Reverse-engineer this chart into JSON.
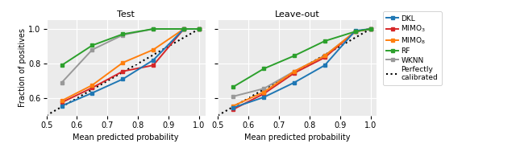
{
  "test": {
    "x_dkl": [
      0.55,
      0.65,
      0.75,
      0.85,
      0.95,
      1.0
    ],
    "y_dkl": [
      0.555,
      0.63,
      0.71,
      0.82,
      1.0,
      1.0
    ],
    "x_mimo3": [
      0.55,
      0.65,
      0.75,
      0.85,
      0.95,
      1.0
    ],
    "y_mimo3": [
      0.575,
      0.66,
      0.755,
      0.79,
      1.0,
      1.0
    ],
    "x_mimo8": [
      0.55,
      0.65,
      0.75,
      0.85,
      0.95,
      1.0
    ],
    "y_mimo8": [
      0.585,
      0.675,
      0.805,
      0.88,
      1.0,
      1.0
    ],
    "x_rf": [
      0.55,
      0.65,
      0.75,
      0.85,
      0.95,
      1.0
    ],
    "y_rf": [
      0.79,
      0.905,
      0.97,
      1.0,
      1.0,
      1.0
    ],
    "x_wknn": [
      0.55,
      0.65,
      0.75,
      0.85,
      0.95,
      1.0
    ],
    "y_wknn": [
      0.69,
      0.88,
      0.965,
      1.0,
      1.0,
      1.0
    ]
  },
  "leaveout": {
    "x_dkl": [
      0.55,
      0.65,
      0.75,
      0.85,
      0.95,
      1.0
    ],
    "y_dkl": [
      0.545,
      0.605,
      0.69,
      0.79,
      0.99,
      1.0
    ],
    "x_mimo3": [
      0.55,
      0.65,
      0.75,
      0.85,
      0.95,
      1.0
    ],
    "y_mimo3": [
      0.535,
      0.625,
      0.745,
      0.835,
      0.985,
      1.0
    ],
    "x_mimo8": [
      0.55,
      0.65,
      0.75,
      0.85,
      0.95,
      1.0
    ],
    "y_mimo8": [
      0.555,
      0.635,
      0.755,
      0.845,
      0.985,
      1.0
    ],
    "x_rf": [
      0.55,
      0.65,
      0.75,
      0.85,
      0.95,
      1.0
    ],
    "y_rf": [
      0.665,
      0.77,
      0.845,
      0.93,
      0.985,
      1.0
    ],
    "x_wknn": [
      0.55,
      0.65,
      0.75,
      0.85,
      0.95,
      1.0
    ],
    "y_wknn": [
      0.61,
      0.655,
      0.755,
      0.845,
      0.985,
      1.0
    ]
  },
  "colors": {
    "dkl": "#1f77b4",
    "mimo3": "#d62728",
    "mimo8": "#ff7f0e",
    "rf": "#2ca02c",
    "wknn": "#999999"
  },
  "xlim": [
    0.5,
    1.02
  ],
  "ylim": [
    0.5,
    1.05
  ],
  "xticks": [
    0.5,
    0.6,
    0.7,
    0.8,
    0.9,
    1.0
  ],
  "yticks": [
    0.6,
    0.8,
    1.0
  ],
  "xlabel": "Mean predicted probability",
  "ylabel": "Fraction of positives",
  "title_test": "Test",
  "title_leaveout": "Leave-out",
  "background_color": "#ebebeb"
}
